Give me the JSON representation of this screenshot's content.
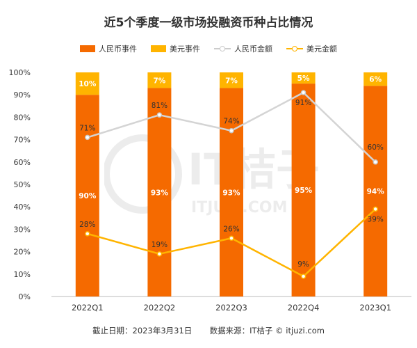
{
  "chart_data": {
    "type": "bar",
    "title": "近5个季度一级市场投融资币种占比情况",
    "categories": [
      "2022Q1",
      "2022Q2",
      "2022Q3",
      "2022Q4",
      "2023Q1"
    ],
    "ylim": [
      0,
      100
    ],
    "yticks": [
      "0%",
      "10%",
      "20%",
      "30%",
      "40%",
      "50%",
      "60%",
      "70%",
      "80%",
      "90%",
      "100%"
    ],
    "stacked": true,
    "grid": false,
    "legend_position": "top-center",
    "series": [
      {
        "name": "人民币事件",
        "kind": "bar",
        "color": "#F56A00",
        "values": [
          90,
          93,
          93,
          95,
          94
        ],
        "labels": [
          "90%",
          "93%",
          "93%",
          "95%",
          "94%"
        ]
      },
      {
        "name": "美元事件",
        "kind": "bar",
        "color": "#FFB400",
        "values": [
          10,
          7,
          7,
          5,
          6
        ],
        "labels": [
          "10%",
          "7%",
          "7%",
          "5%",
          "6%"
        ]
      },
      {
        "name": "人民币金额",
        "kind": "line",
        "color": "#D4D4D4",
        "values": [
          71,
          81,
          74,
          91,
          60
        ],
        "labels": [
          "71%",
          "81%",
          "74%",
          "91%",
          "60%"
        ]
      },
      {
        "name": "美元金额",
        "kind": "line",
        "color": "#FFB400",
        "values": [
          28,
          19,
          26,
          9,
          39
        ],
        "labels": [
          "28%",
          "19%",
          "26%",
          "9%",
          "39%"
        ]
      }
    ]
  },
  "footer": {
    "cutoff": "截止日期：2023年3月31日",
    "source": "数据来源：IT桔子 © itjuzi.com"
  },
  "watermark": {
    "brand": "IT桔子",
    "domain": "ITJUZI.COM"
  }
}
